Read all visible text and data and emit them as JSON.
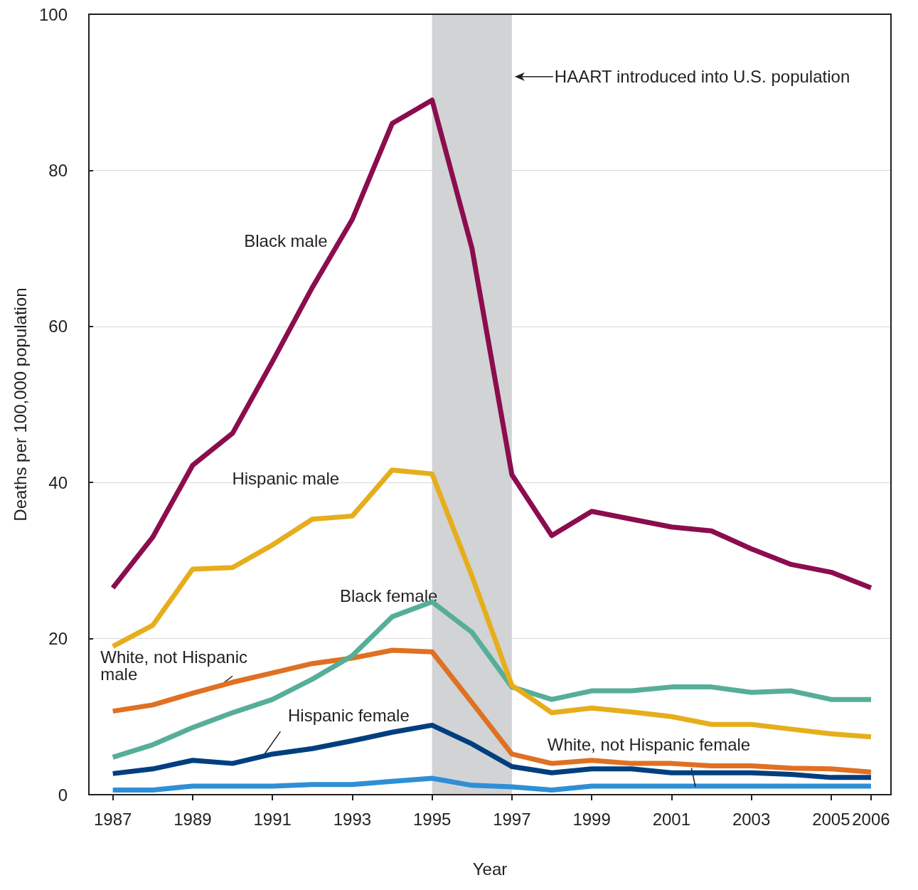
{
  "chart_data": {
    "type": "line",
    "xlabel": "Year",
    "ylabel": "Deaths per 100,000 population",
    "x": [
      1987,
      1988,
      1989,
      1990,
      1991,
      1992,
      1993,
      1994,
      1995,
      1996,
      1997,
      1998,
      1999,
      2000,
      2001,
      2002,
      2003,
      2004,
      2005,
      2006
    ],
    "series": [
      {
        "name": "Black male",
        "color": "#8b0d4e",
        "values": [
          26.5,
          33,
          42.2,
          46.3,
          55.5,
          65,
          73.7,
          86,
          89,
          70,
          41,
          33.2,
          36.3,
          35.3,
          34.3,
          33.8,
          31.5,
          29.5,
          28.5,
          26.5
        ]
      },
      {
        "name": "Hispanic male",
        "color": "#e6ae1c",
        "values": [
          19,
          21.7,
          28.9,
          29.1,
          32,
          35.3,
          35.7,
          41.6,
          41.1,
          28,
          14,
          10.5,
          11.1,
          10.6,
          10,
          9,
          9,
          8.4,
          7.8,
          7.4
        ]
      },
      {
        "name": "Black female",
        "color": "#56ae99",
        "values": [
          4.8,
          6.4,
          8.6,
          10.5,
          12.2,
          14.8,
          17.8,
          22.8,
          24.7,
          20.8,
          13.8,
          12.2,
          13.3,
          13.3,
          13.8,
          13.8,
          13.1,
          13.3,
          12.2,
          12.2
        ]
      },
      {
        "name": "White, not Hispanic male",
        "color": "#e07022",
        "values": [
          10.7,
          11.5,
          13,
          14.4,
          15.6,
          16.8,
          17.5,
          18.5,
          18.3,
          11.8,
          5.2,
          4,
          4.4,
          4,
          4,
          3.7,
          3.7,
          3.4,
          3.3,
          2.9
        ]
      },
      {
        "name": "Hispanic female",
        "color": "#003f7f",
        "values": [
          2.7,
          3.3,
          4.4,
          4,
          5.2,
          5.9,
          6.9,
          8,
          8.9,
          6.5,
          3.6,
          2.8,
          3.3,
          3.3,
          2.8,
          2.8,
          2.8,
          2.6,
          2.2,
          2.2
        ]
      },
      {
        "name": "White, not Hispanic female",
        "color": "#2f8fd6",
        "values": [
          0.6,
          0.6,
          1.1,
          1.1,
          1.1,
          1.3,
          1.3,
          1.7,
          2.1,
          1.2,
          1,
          0.6,
          1.1,
          1.1,
          1.1,
          1.1,
          1.1,
          1.1,
          1.1,
          1.1
        ]
      }
    ],
    "xlim": [
      1986.4,
      2006.5
    ],
    "xticks": [
      1987,
      1989,
      1991,
      1993,
      1995,
      1997,
      1999,
      2001,
      2003,
      2005,
      2006
    ],
    "ylim": [
      0,
      100
    ],
    "yticks": [
      0,
      20,
      40,
      60,
      80,
      100
    ],
    "bands": [
      {
        "axis": "x",
        "from": 1995,
        "to": 1997,
        "label": "HAART introduced into U.S. population",
        "color": "#d1d3d4"
      }
    ],
    "grid": "y",
    "legend": false,
    "marker": "none",
    "line_style": "solid"
  }
}
